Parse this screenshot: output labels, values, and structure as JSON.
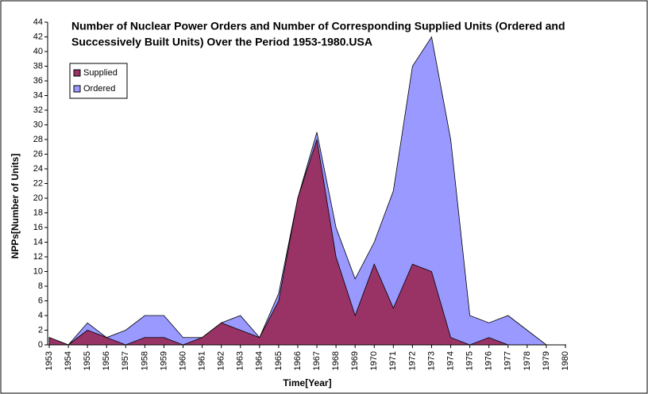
{
  "chart_data": {
    "type": "area",
    "title": [
      "Number of Nuclear Power Orders and Number of Corresponding Supplied Units (Ordered and",
      "Successively Built Units) Over the Period 1953-1980.USA"
    ],
    "x_label": "Time[Year]",
    "y_label": "NPPs[Number of Units]",
    "categories": [
      "1953",
      "1954",
      "1955",
      "1956",
      "1957",
      "1958",
      "1959",
      "1960",
      "1961",
      "1962",
      "1963",
      "1964",
      "1965",
      "1966",
      "1967",
      "1968",
      "1969",
      "1970",
      "1971",
      "1972",
      "1973",
      "1974",
      "1975",
      "1976",
      "1977",
      "1978",
      "1979",
      "1980"
    ],
    "series": [
      {
        "name": "Ordered",
        "color": "#9999ff",
        "values": [
          1,
          0,
          3,
          1,
          2,
          4,
          4,
          1,
          1,
          3,
          4,
          1,
          7,
          20,
          29,
          16,
          9,
          14,
          21,
          38,
          42,
          28,
          4,
          3,
          4,
          2,
          0,
          0
        ]
      },
      {
        "name": "Supplied",
        "color": "#993366",
        "values": [
          1,
          0,
          2,
          1,
          0,
          1,
          1,
          0,
          1,
          3,
          2,
          1,
          6,
          20,
          28,
          12,
          4,
          11,
          5,
          11,
          10,
          1,
          0,
          1,
          0,
          null,
          null,
          null
        ]
      }
    ],
    "legend_order": [
      1,
      0
    ],
    "ylim": [
      0,
      44
    ],
    "yticks": [
      0,
      2,
      4,
      6,
      8,
      10,
      12,
      14,
      16,
      18,
      20,
      22,
      24,
      26,
      28,
      30,
      32,
      34,
      36,
      38,
      40,
      42,
      44
    ]
  }
}
